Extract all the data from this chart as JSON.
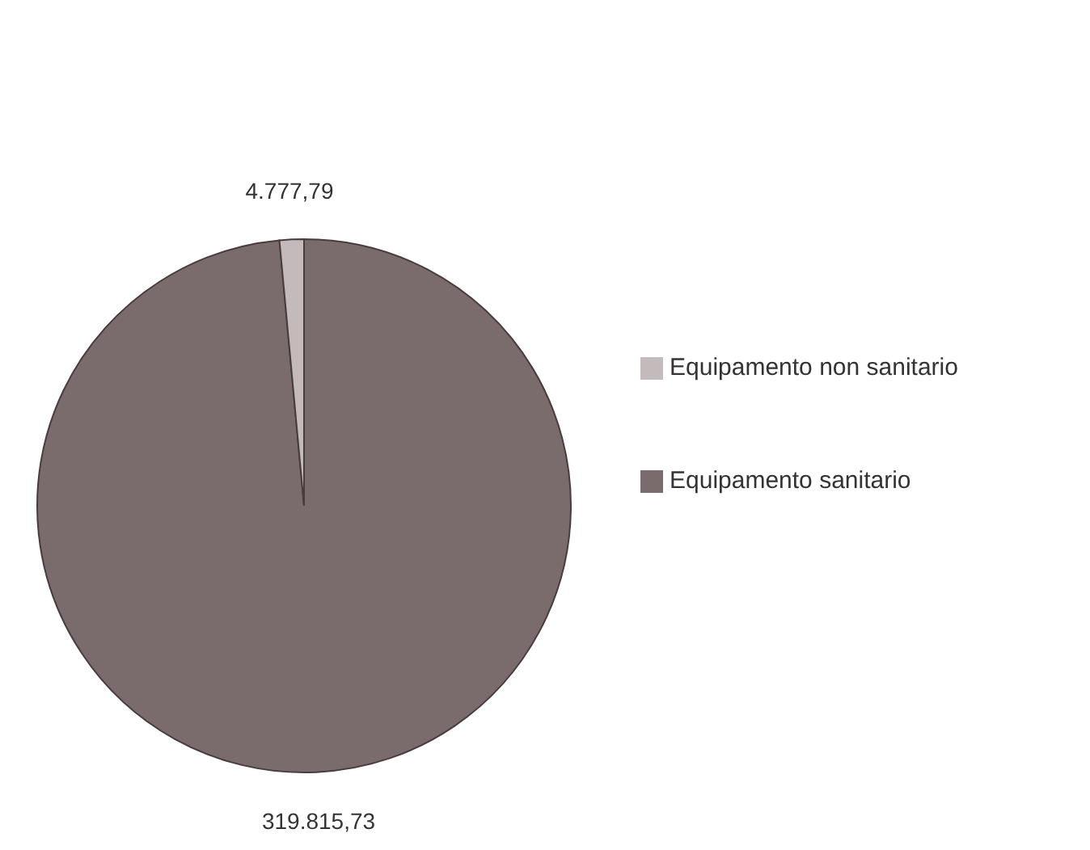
{
  "chart_data": {
    "type": "pie",
    "categories": [
      "Equipamento sanitario",
      "Equipamento non sanitario"
    ],
    "values": [
      319815.73,
      4777.79
    ],
    "colors": [
      "#7a6b6c",
      "#c3babb"
    ],
    "value_labels": [
      "319.815,73",
      "4.777,79"
    ],
    "legend": "right"
  }
}
